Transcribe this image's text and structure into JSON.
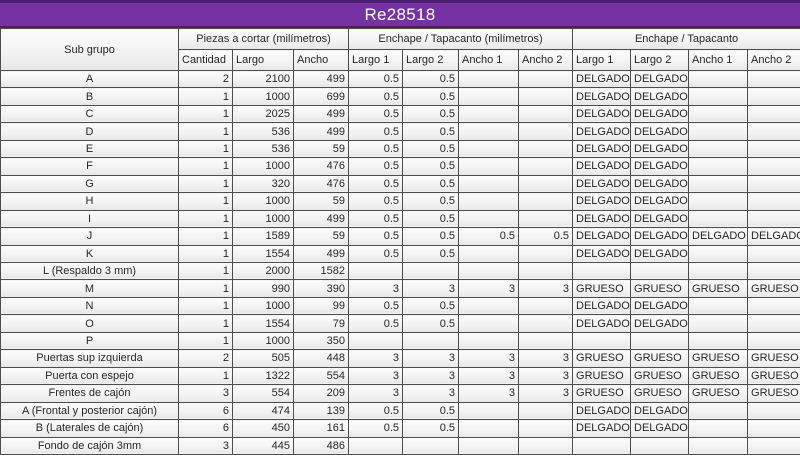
{
  "title": "Re28518",
  "colors": {
    "title_bg": "#7632a4",
    "title_edge": "#4b1e71",
    "grid": "#4d4d4d",
    "text": "#262626"
  },
  "header": {
    "sub_grupo": "Sub grupo",
    "groups": [
      {
        "label": "Piezas a cortar (milímetros)",
        "cols": [
          "Cantidad",
          "Largo",
          "Ancho"
        ]
      },
      {
        "label": "Enchape / Tapacanto (milímetros)",
        "cols": [
          "Largo 1",
          "Largo 2",
          "Ancho 1",
          "Ancho 2"
        ]
      },
      {
        "label": "Enchape / Tapacanto",
        "cols": [
          "Largo 1",
          "Largo 2",
          "Ancho 1",
          "Ancho 2"
        ]
      }
    ]
  },
  "rows": [
    [
      "A",
      "2",
      "2100",
      "499",
      "0.5",
      "0.5",
      "",
      "",
      "DELGADO",
      "DELGADO",
      "",
      ""
    ],
    [
      "B",
      "1",
      "1000",
      "699",
      "0.5",
      "0.5",
      "",
      "",
      "DELGADO",
      "DELGADO",
      "",
      ""
    ],
    [
      "C",
      "1",
      "2025",
      "499",
      "0.5",
      "0.5",
      "",
      "",
      "DELGADO",
      "DELGADO",
      "",
      ""
    ],
    [
      "D",
      "1",
      "536",
      "499",
      "0.5",
      "0.5",
      "",
      "",
      "DELGADO",
      "DELGADO",
      "",
      ""
    ],
    [
      "E",
      "1",
      "536",
      "59",
      "0.5",
      "0.5",
      "",
      "",
      "DELGADO",
      "DELGADO",
      "",
      ""
    ],
    [
      "F",
      "1",
      "1000",
      "476",
      "0.5",
      "0.5",
      "",
      "",
      "DELGADO",
      "DELGADO",
      "",
      ""
    ],
    [
      "G",
      "1",
      "320",
      "476",
      "0.5",
      "0.5",
      "",
      "",
      "DELGADO",
      "DELGADO",
      "",
      ""
    ],
    [
      "H",
      "1",
      "1000",
      "59",
      "0.5",
      "0.5",
      "",
      "",
      "DELGADO",
      "DELGADO",
      "",
      ""
    ],
    [
      "I",
      "1",
      "1000",
      "499",
      "0.5",
      "0.5",
      "",
      "",
      "DELGADO",
      "DELGADO",
      "",
      ""
    ],
    [
      "J",
      "1",
      "1589",
      "59",
      "0.5",
      "0.5",
      "0.5",
      "0.5",
      "DELGADO",
      "DELGADO",
      "DELGADO",
      "DELGADO"
    ],
    [
      "K",
      "1",
      "1554",
      "499",
      "0.5",
      "0.5",
      "",
      "",
      "DELGADO",
      "DELGADO",
      "",
      ""
    ],
    [
      "L (Respaldo 3 mm)",
      "1",
      "2000",
      "1582",
      "",
      "",
      "",
      "",
      "",
      "",
      "",
      ""
    ],
    [
      "M",
      "1",
      "990",
      "390",
      "3",
      "3",
      "3",
      "3",
      "GRUESO",
      "GRUESO",
      "GRUESO",
      "GRUESO"
    ],
    [
      "N",
      "1",
      "1000",
      "99",
      "0.5",
      "0.5",
      "",
      "",
      "DELGADO",
      "DELGADO",
      "",
      ""
    ],
    [
      "O",
      "1",
      "1554",
      "79",
      "0.5",
      "0.5",
      "",
      "",
      "DELGADO",
      "DELGADO",
      "",
      ""
    ],
    [
      "P",
      "1",
      "1000",
      "350",
      "",
      "",
      "",
      "",
      "",
      "",
      "",
      ""
    ],
    [
      "Puertas sup izquierda",
      "2",
      "505",
      "448",
      "3",
      "3",
      "3",
      "3",
      "GRUESO",
      "GRUESO",
      "GRUESO",
      "GRUESO"
    ],
    [
      "Puerta con espejo",
      "1",
      "1322",
      "554",
      "3",
      "3",
      "3",
      "3",
      "GRUESO",
      "GRUESO",
      "GRUESO",
      "GRUESO"
    ],
    [
      "Frentes de cajón",
      "3",
      "554",
      "209",
      "3",
      "3",
      "3",
      "3",
      "GRUESO",
      "GRUESO",
      "GRUESO",
      "GRUESO"
    ],
    [
      "A (Frontal y posterior cajón)",
      "6",
      "474",
      "139",
      "0.5",
      "0.5",
      "",
      "",
      "DELGADO",
      "DELGADO",
      "",
      ""
    ],
    [
      "B (Laterales de cajón)",
      "6",
      "450",
      "161",
      "0.5",
      "0.5",
      "",
      "",
      "DELGADO",
      "DELGADO",
      "",
      ""
    ],
    [
      "Fondo de cajón 3mm",
      "3",
      "445",
      "486",
      "",
      "",
      "",
      "",
      "",
      "",
      "",
      ""
    ]
  ]
}
